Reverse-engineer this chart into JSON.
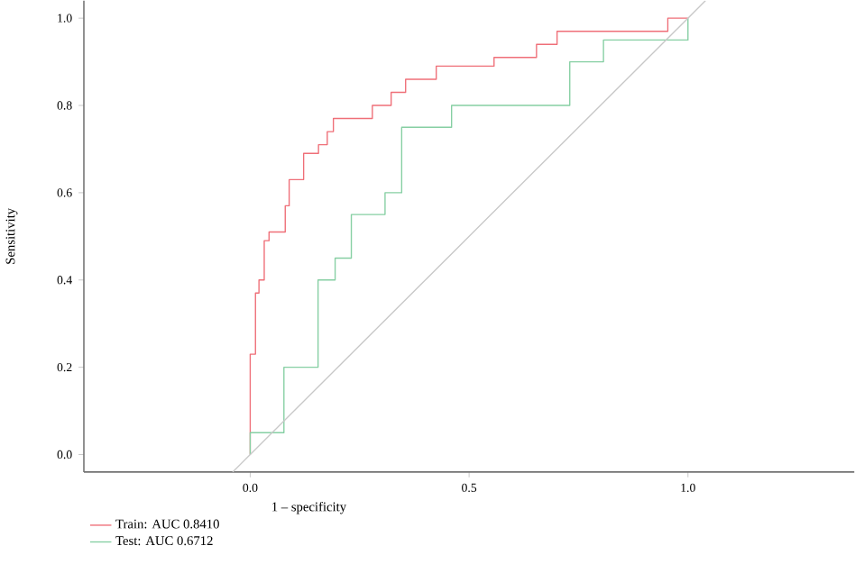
{
  "chart_data": {
    "type": "step",
    "xlabel": "1 – specificity",
    "ylabel": "Sensitivity",
    "legend": "bottom left",
    "marker": "none",
    "line_style": "solid",
    "xlim": [
      -0.38,
      1.38
    ],
    "ylim": [
      -0.04,
      1.04
    ],
    "xticks": [
      {
        "value": 0,
        "label": "0.0"
      },
      {
        "value": 0.5,
        "label": "0.5"
      },
      {
        "value": 1,
        "label": "1.0"
      }
    ],
    "yticks": [
      {
        "value": 0,
        "label": "0.0"
      },
      {
        "value": 0.2,
        "label": "0.2"
      },
      {
        "value": 0.4,
        "label": "0.4"
      },
      {
        "value": 0.6,
        "label": "0.6"
      },
      {
        "value": 0.8,
        "label": "0.8"
      },
      {
        "value": 1,
        "label": "1.0"
      }
    ],
    "series": [
      {
        "name": "Train: AUC 0.8410",
        "color": "#ef6f78",
        "x": [
          0,
          0,
          0.012,
          0.02,
          0.032,
          0.043,
          0.08,
          0.089,
          0.122,
          0.156,
          0.176,
          0.19,
          0.279,
          0.322,
          0.355,
          0.425,
          0.557,
          0.654,
          0.701,
          0.954,
          1.0
        ],
        "values": [
          0,
          0.23,
          0.37,
          0.4,
          0.49,
          0.51,
          0.57,
          0.63,
          0.69,
          0.71,
          0.74,
          0.77,
          0.8,
          0.83,
          0.86,
          0.89,
          0.91,
          0.94,
          0.97,
          1.0,
          1.0
        ]
      },
      {
        "name": "Test: AUC 0.6712",
        "color": "#86cfa3",
        "x": [
          0,
          0,
          0.077,
          0.155,
          0.194,
          0.231,
          0.308,
          0.346,
          0.46,
          0.73,
          0.807,
          1.0
        ],
        "values": [
          0,
          0.05,
          0.2,
          0.4,
          0.45,
          0.55,
          0.6,
          0.75,
          0.8,
          0.9,
          0.95,
          1.0
        ]
      },
      {
        "color": "#c8c8c8",
        "type": "line",
        "x": [
          -0.04,
          1.04
        ],
        "values": [
          -0.04,
          1.04
        ]
      }
    ]
  }
}
